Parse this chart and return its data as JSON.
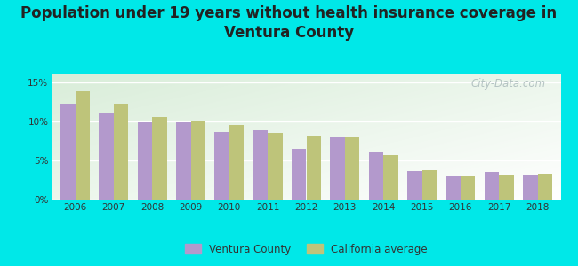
{
  "title": "Population under 19 years without health insurance coverage in\nVentura County",
  "years": [
    2006,
    2007,
    2008,
    2009,
    2010,
    2011,
    2012,
    2013,
    2014,
    2015,
    2016,
    2017,
    2018
  ],
  "ventura": [
    12.2,
    11.1,
    9.9,
    9.9,
    8.6,
    8.8,
    6.5,
    7.9,
    6.1,
    3.6,
    3.0,
    3.5,
    3.2
  ],
  "california": [
    13.8,
    12.2,
    10.5,
    10.0,
    9.5,
    8.5,
    8.2,
    7.9,
    5.7,
    3.7,
    3.1,
    3.2,
    3.3
  ],
  "ventura_color": "#b399cc",
  "california_color": "#bec47a",
  "bg_outer": "#00e8e8",
  "ylim": [
    0,
    16
  ],
  "yticks": [
    0,
    5,
    10,
    15
  ],
  "ytick_labels": [
    "0%",
    "5%",
    "10%",
    "15%"
  ],
  "watermark": "City-Data.com",
  "bar_width": 0.38,
  "title_fontsize": 12,
  "legend_ventura": "Ventura County",
  "legend_california": "California average"
}
